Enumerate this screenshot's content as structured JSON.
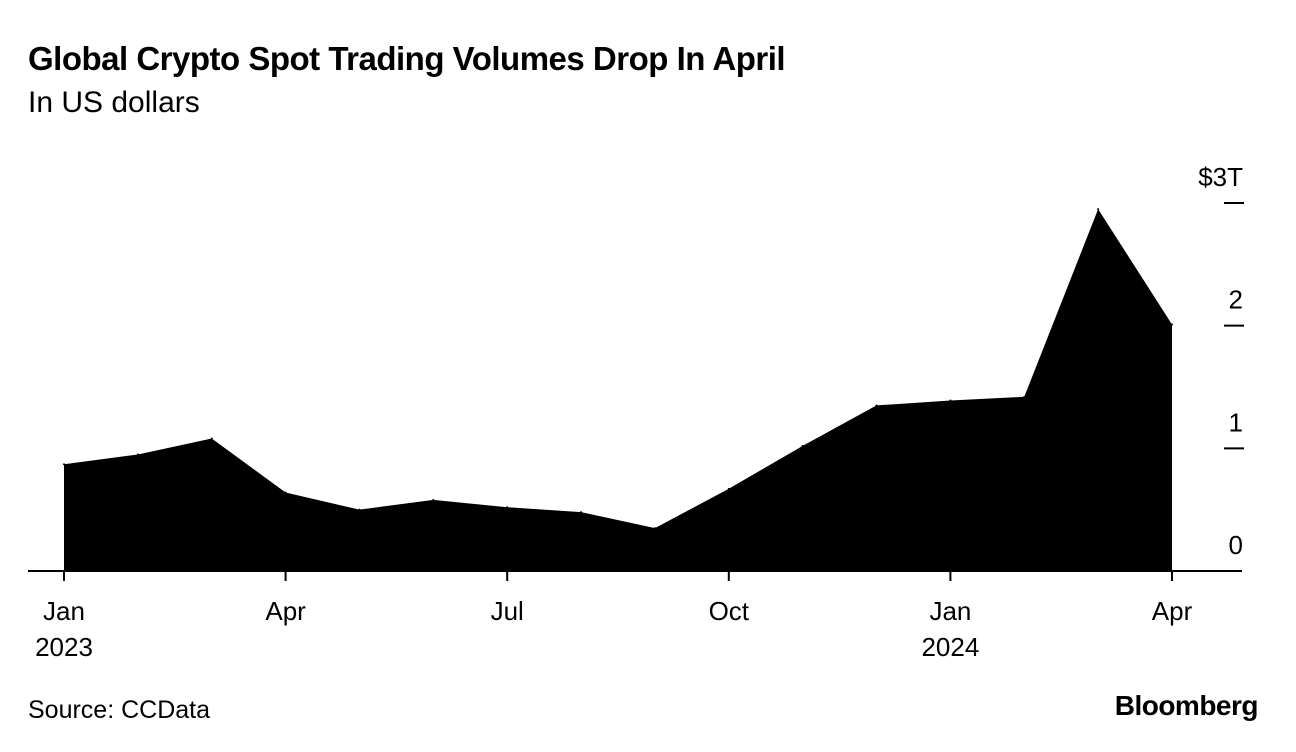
{
  "header": {
    "title": "Global Crypto Spot Trading Volumes Drop In April",
    "subtitle": "In US dollars"
  },
  "footer": {
    "source": "Source: CCData",
    "logo": "Bloomberg"
  },
  "chart_data": {
    "type": "area",
    "title": "Global Crypto Spot Trading Volumes Drop In April",
    "subtitle": "In US dollars",
    "xlabel": "",
    "ylabel": "",
    "x": [
      "2023-01",
      "2023-02",
      "2023-03",
      "2023-04",
      "2023-05",
      "2023-06",
      "2023-07",
      "2023-08",
      "2023-09",
      "2023-10",
      "2023-11",
      "2023-12",
      "2024-01",
      "2024-02",
      "2024-03",
      "2024-04"
    ],
    "series": [
      {
        "values": [
          0.87,
          0.95,
          1.08,
          0.64,
          0.5,
          0.58,
          0.52,
          0.48,
          0.35,
          0.67,
          1.02,
          1.35,
          1.39,
          1.42,
          2.95,
          2.01
        ]
      }
    ],
    "ylim": [
      0,
      3
    ],
    "y_ticks": [
      {
        "value": 0,
        "label": "0"
      },
      {
        "value": 1,
        "label": "1"
      },
      {
        "value": 2,
        "label": "2"
      },
      {
        "value": 3,
        "label": "$3T"
      }
    ],
    "x_ticks": [
      {
        "month": "2023-01",
        "label": "Jan",
        "year": "2023"
      },
      {
        "month": "2023-04",
        "label": "Apr",
        "year": ""
      },
      {
        "month": "2023-07",
        "label": "Jul",
        "year": ""
      },
      {
        "month": "2023-10",
        "label": "Oct",
        "year": ""
      },
      {
        "month": "2024-01",
        "label": "Jan",
        "year": "2024"
      },
      {
        "month": "2024-04",
        "label": "Apr",
        "year": ""
      }
    ],
    "grid": false,
    "y_axis_side": "right",
    "colors": {
      "fill": "#000000",
      "axis": "#000000"
    }
  }
}
